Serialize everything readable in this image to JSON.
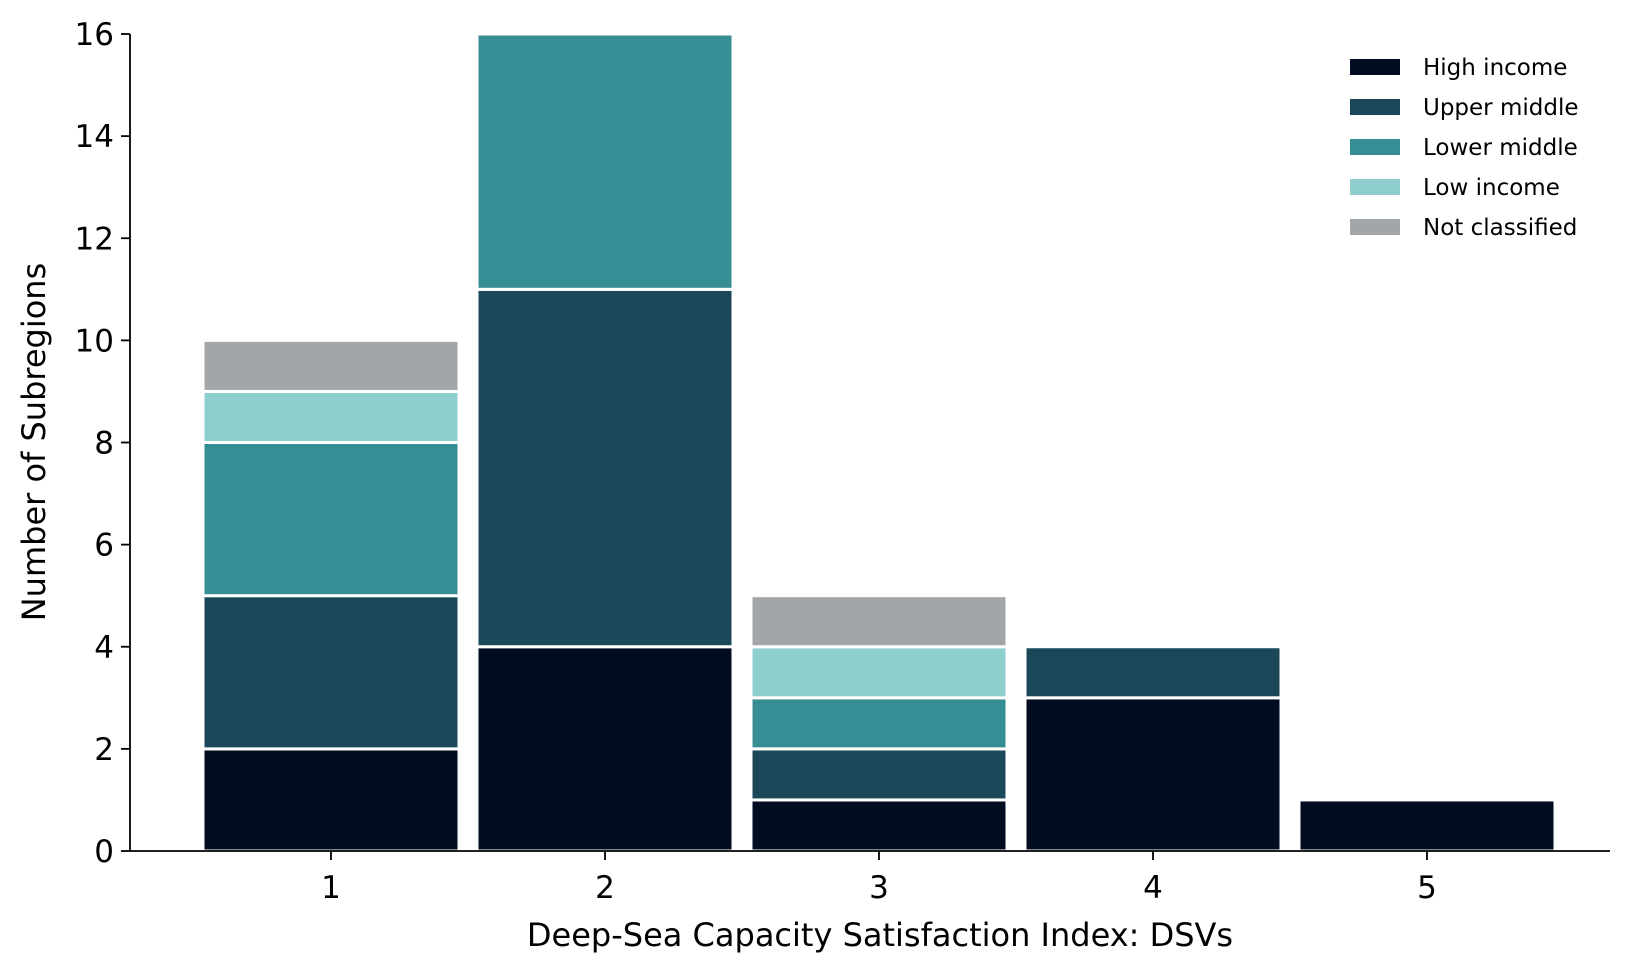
{
  "chart_data": {
    "type": "bar",
    "stacked": true,
    "title": "",
    "xlabel": "Deep-Sea Capacity Satisfaction Index: DSVs",
    "ylabel": "Number of Subregions",
    "categories": [
      "1",
      "2",
      "3",
      "4",
      "5"
    ],
    "ylim": [
      0,
      16
    ],
    "yticks": [
      0,
      2,
      4,
      6,
      8,
      10,
      12,
      14,
      16
    ],
    "grid": false,
    "legend_position": "top-right",
    "series": [
      {
        "name": "High income",
        "color": "#020d22",
        "values": [
          2,
          4,
          1,
          3,
          1
        ]
      },
      {
        "name": "Upper middle",
        "color": "#1b4858",
        "values": [
          3,
          7,
          1,
          1,
          0
        ]
      },
      {
        "name": "Lower middle",
        "color": "#378d94",
        "values": [
          3,
          5,
          1,
          0,
          0
        ]
      },
      {
        "name": "Low income",
        "color": "#8ecfce",
        "values": [
          1,
          0,
          1,
          0,
          0
        ]
      },
      {
        "name": "Not classified",
        "color": "#a3a6a9",
        "values": [
          1,
          0,
          1,
          0,
          0
        ]
      }
    ]
  }
}
